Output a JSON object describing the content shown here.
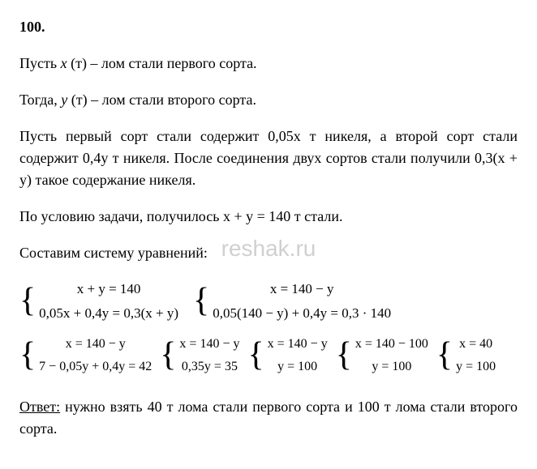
{
  "problem_number": "100.",
  "p1_a": "Пусть  ",
  "p1_var": "x",
  "p1_b": " (т) – лом стали первого сорта.",
  "p2_a": "Тогда,  ",
  "p2_var": "y",
  "p2_b": " (т) – лом стали второго сорта.",
  "p3": "Пусть первый сорт стали содержит 0,05x т никеля, а второй сорт стали содержит 0,4y т никеля. После соединения двух сортов стали получили 0,3(x + y) такое содержание никеля.",
  "p4": "По условию задачи, получилось x + y = 140 т стали.",
  "p5": "Составим систему уравнений:",
  "sys1": {
    "r1": "x + y = 140",
    "r2": "0,05x + 0,4y = 0,3(x + y)"
  },
  "sys2": {
    "r1": "x = 140 − y",
    "r2": "0,05(140 − y) + 0,4y = 0,3 · 140"
  },
  "sys3": {
    "r1": "x = 140 − y",
    "r2": "7 − 0,05y + 0,4y = 42"
  },
  "sys4": {
    "r1": "x = 140 − y",
    "r2": "0,35y = 35"
  },
  "sys5": {
    "r1": "x = 140 − y",
    "r2": "y = 100"
  },
  "sys6": {
    "r1": "x = 140 − 100",
    "r2": "y = 100"
  },
  "sys7": {
    "r1": "x = 40",
    "r2": "y = 100"
  },
  "answer_label": "Ответ:",
  "answer_text": "  нужно взять 40 т лома стали первого сорта и 100 т лома стали второго сорта.",
  "watermark": "reshak.ru"
}
